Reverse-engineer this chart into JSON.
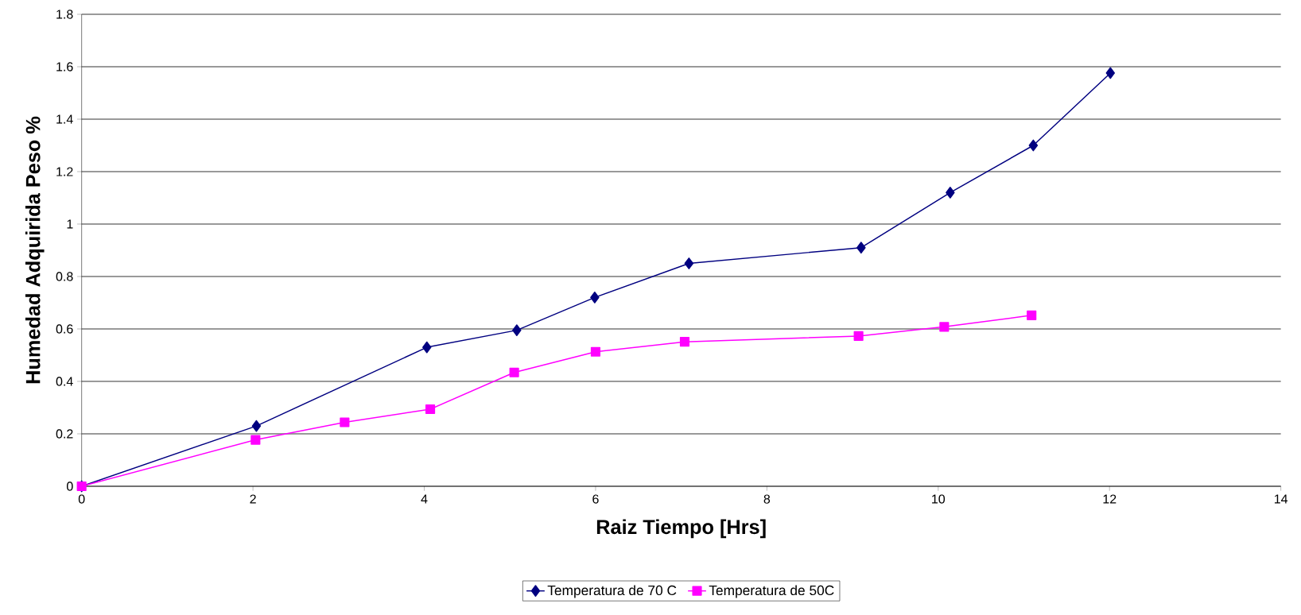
{
  "chart_data": {
    "type": "line",
    "xlabel": "Raiz Tiempo [Hrs]",
    "ylabel": "Humedad Adquirida Peso %",
    "xlim": [
      0,
      14
    ],
    "ylim": [
      0,
      1.8
    ],
    "xticks": [
      0,
      2,
      4,
      6,
      8,
      10,
      12,
      14
    ],
    "yticks": [
      0,
      0.2,
      0.4,
      0.6,
      0.8,
      1,
      1.2,
      1.4,
      1.6,
      1.8
    ],
    "grid": "y",
    "legend": "bottom",
    "series": [
      {
        "name": "Temperatura de 70 C",
        "color": "#000080",
        "marker": "diamond",
        "x": [
          0,
          2.04,
          4.03,
          5.08,
          5.99,
          7.09,
          9.1,
          10.14,
          11.11,
          12.01
        ],
        "values": [
          0,
          0.23,
          0.53,
          0.595,
          0.72,
          0.85,
          0.91,
          1.12,
          1.3,
          1.576
        ]
      },
      {
        "name": "Temperatura de 50C",
        "color": "#ff00ff",
        "marker": "square",
        "x": [
          0,
          2.03,
          3.07,
          4.07,
          5.05,
          6.0,
          7.04,
          9.07,
          10.07,
          11.09
        ],
        "values": [
          0,
          0.177,
          0.244,
          0.294,
          0.434,
          0.513,
          0.551,
          0.573,
          0.608,
          0.652
        ]
      }
    ]
  }
}
